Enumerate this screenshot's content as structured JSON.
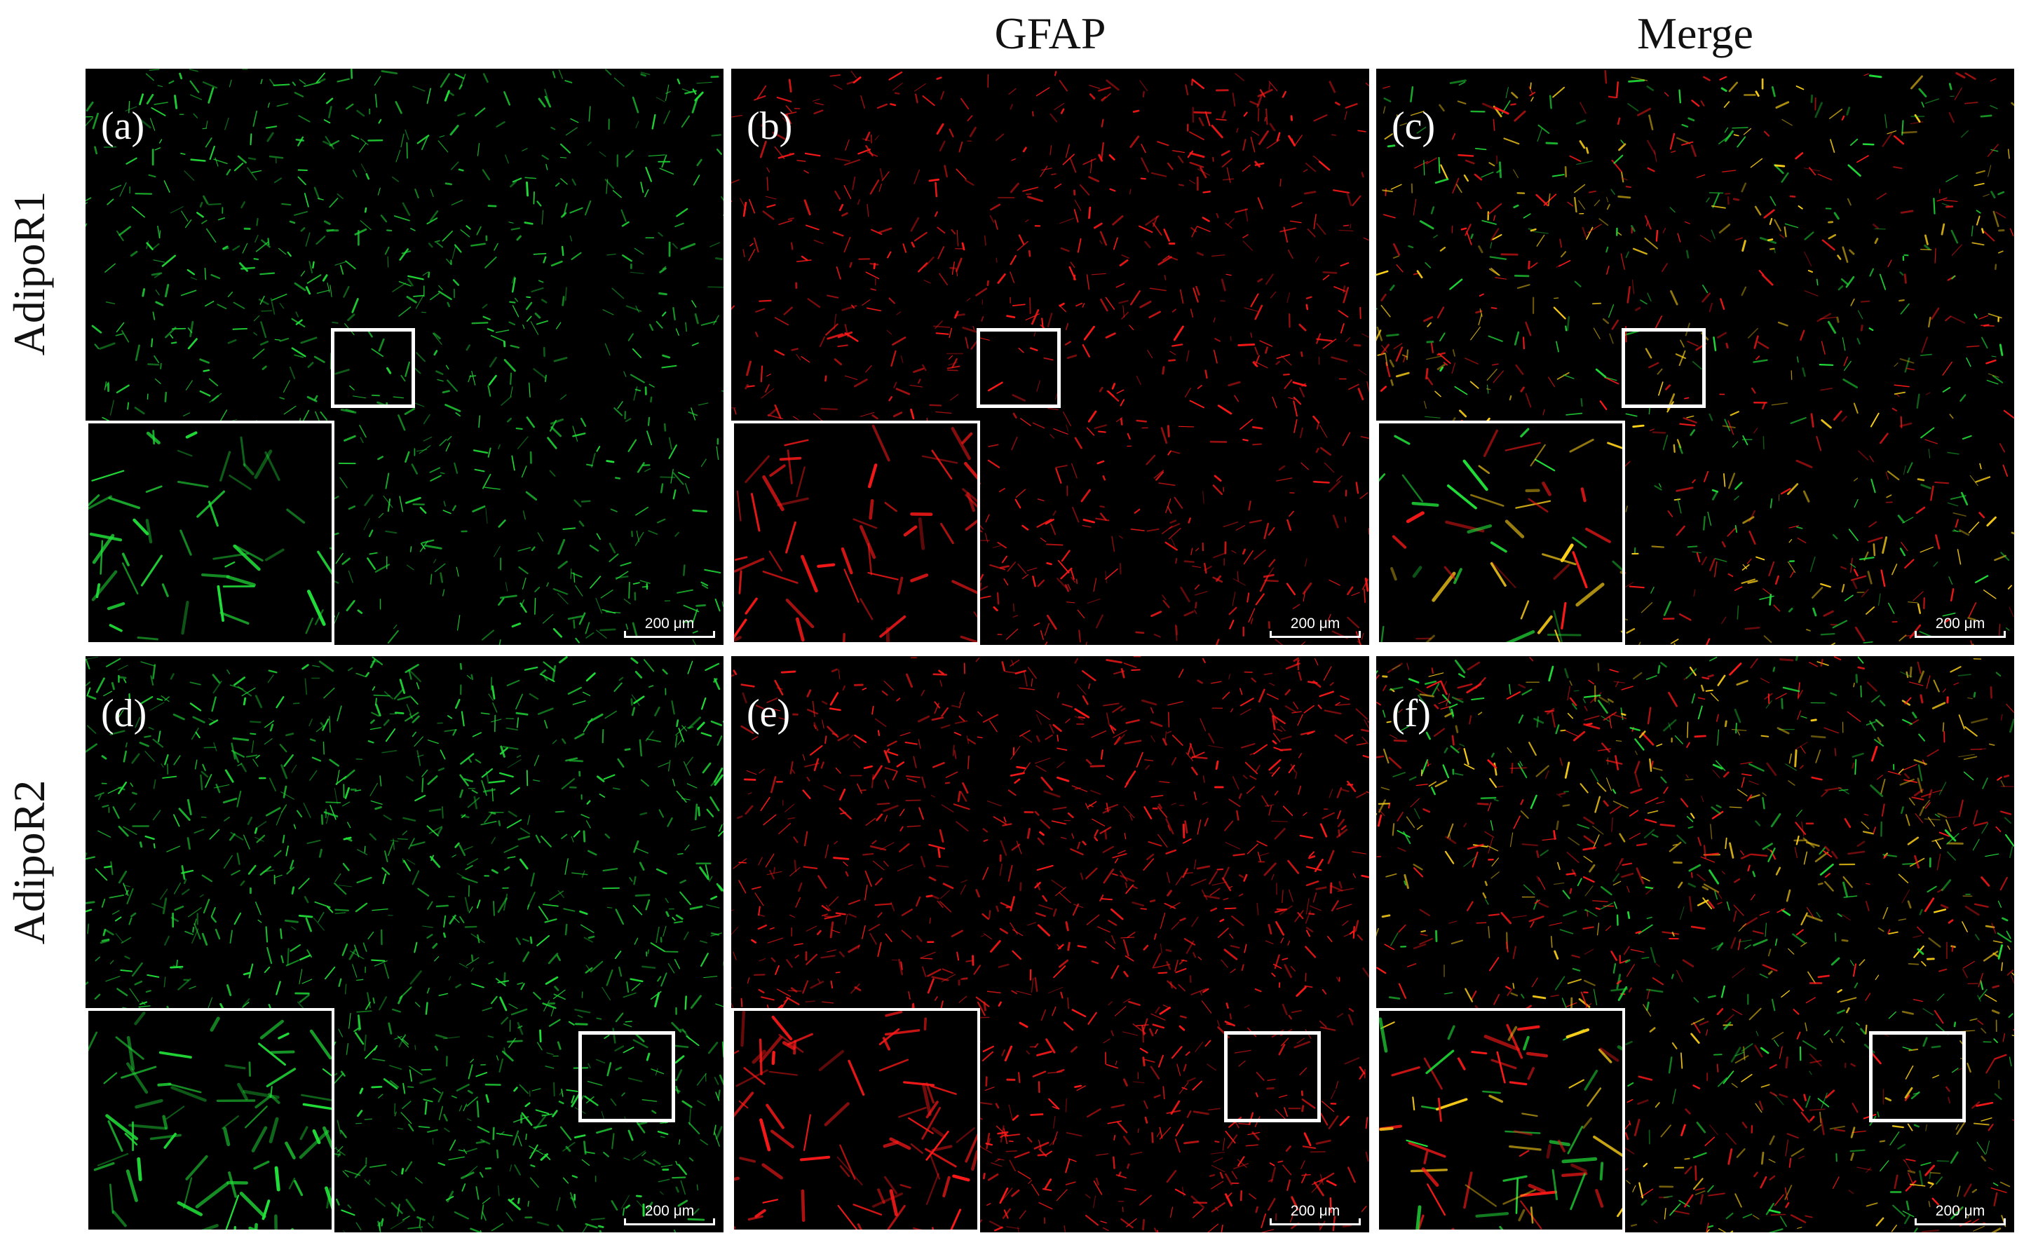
{
  "columns": [
    {
      "title": ""
    },
    {
      "title": "GFAP"
    },
    {
      "title": "Merge"
    }
  ],
  "rows": [
    {
      "title": "AdipoR1"
    },
    {
      "title": "AdipoR2"
    }
  ],
  "panels": [
    {
      "label": "(a)",
      "channel": "green",
      "scale": "200 μm"
    },
    {
      "label": "(b)",
      "channel": "red",
      "scale": "200 μm"
    },
    {
      "label": "(c)",
      "channel": "merge",
      "scale": "200 μm"
    },
    {
      "label": "(d)",
      "channel": "green",
      "scale": "200 μm"
    },
    {
      "label": "(e)",
      "channel": "red",
      "scale": "200 μm"
    },
    {
      "label": "(f)",
      "channel": "merge",
      "scale": "200 μm"
    }
  ],
  "colors": {
    "green": "#22e03a",
    "red": "#ff1a1a",
    "yellow": "#ffd21a",
    "background": "#000000",
    "frame": "#ffffff"
  }
}
